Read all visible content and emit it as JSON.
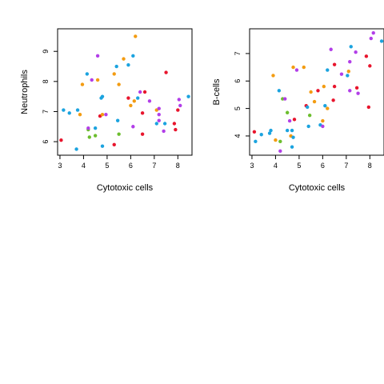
{
  "chart_data": [
    {
      "type": "scatter",
      "xlabel": "Cytotoxic cells",
      "ylabel": "Neutrophils",
      "xlim": [
        2.9,
        8.6
      ],
      "ylim": [
        5.55,
        9.75
      ],
      "xticks": [
        "3",
        "4",
        "5",
        "6",
        "7",
        "8"
      ],
      "yticks": [
        "6",
        "7",
        "8",
        "9"
      ],
      "grid": false,
      "points": [
        {
          "x": 3.05,
          "y": 6.05,
          "color": "#e8152d"
        },
        {
          "x": 3.15,
          "y": 7.05,
          "color": "#1ba3df"
        },
        {
          "x": 3.4,
          "y": 6.95,
          "color": "#1ba3df"
        },
        {
          "x": 3.75,
          "y": 7.05,
          "color": "#1ba3df"
        },
        {
          "x": 3.7,
          "y": 5.75,
          "color": "#1ba3df"
        },
        {
          "x": 3.85,
          "y": 6.9,
          "color": "#f39c12"
        },
        {
          "x": 3.95,
          "y": 7.9,
          "color": "#f39c12"
        },
        {
          "x": 4.15,
          "y": 8.25,
          "color": "#1ba3df"
        },
        {
          "x": 4.2,
          "y": 6.4,
          "color": "#6cbe2e"
        },
        {
          "x": 4.2,
          "y": 6.45,
          "color": "#b23ee8"
        },
        {
          "x": 4.25,
          "y": 6.15,
          "color": "#6cbe2e"
        },
        {
          "x": 4.35,
          "y": 8.05,
          "color": "#b23ee8"
        },
        {
          "x": 4.5,
          "y": 6.45,
          "color": "#1ba3df"
        },
        {
          "x": 4.5,
          "y": 6.2,
          "color": "#6cbe2e"
        },
        {
          "x": 4.6,
          "y": 8.85,
          "color": "#b23ee8"
        },
        {
          "x": 4.6,
          "y": 8.05,
          "color": "#f39c12"
        },
        {
          "x": 4.7,
          "y": 6.85,
          "color": "#e8152d"
        },
        {
          "x": 4.75,
          "y": 7.45,
          "color": "#1ba3df"
        },
        {
          "x": 4.8,
          "y": 7.5,
          "color": "#1ba3df"
        },
        {
          "x": 4.8,
          "y": 5.85,
          "color": "#1ba3df"
        },
        {
          "x": 4.8,
          "y": 6.9,
          "color": "#f39c12"
        },
        {
          "x": 4.95,
          "y": 6.9,
          "color": "#b23ee8"
        },
        {
          "x": 5.3,
          "y": 8.25,
          "color": "#f39c12"
        },
        {
          "x": 5.3,
          "y": 5.9,
          "color": "#e8152d"
        },
        {
          "x": 5.4,
          "y": 8.5,
          "color": "#1ba3df"
        },
        {
          "x": 5.45,
          "y": 6.7,
          "color": "#1ba3df"
        },
        {
          "x": 5.5,
          "y": 6.25,
          "color": "#6cbe2e"
        },
        {
          "x": 5.5,
          "y": 7.9,
          "color": "#f39c12"
        },
        {
          "x": 5.7,
          "y": 8.75,
          "color": "#f39c12"
        },
        {
          "x": 5.9,
          "y": 8.55,
          "color": "#1ba3df"
        },
        {
          "x": 5.9,
          "y": 7.45,
          "color": "#e8152d"
        },
        {
          "x": 6.0,
          "y": 7.2,
          "color": "#f39c12"
        },
        {
          "x": 6.1,
          "y": 8.85,
          "color": "#1ba3df"
        },
        {
          "x": 6.1,
          "y": 6.5,
          "color": "#b23ee8"
        },
        {
          "x": 6.15,
          "y": 7.35,
          "color": "#f39c12"
        },
        {
          "x": 6.2,
          "y": 9.5,
          "color": "#f39c12"
        },
        {
          "x": 6.3,
          "y": 7.45,
          "color": "#1ba3df"
        },
        {
          "x": 6.4,
          "y": 7.65,
          "color": "#b23ee8"
        },
        {
          "x": 6.5,
          "y": 6.95,
          "color": "#e8152d"
        },
        {
          "x": 6.5,
          "y": 6.25,
          "color": "#e8152d"
        },
        {
          "x": 6.6,
          "y": 7.65,
          "color": "#e8152d"
        },
        {
          "x": 6.8,
          "y": 7.35,
          "color": "#b23ee8"
        },
        {
          "x": 7.1,
          "y": 7.05,
          "color": "#f39c12"
        },
        {
          "x": 7.1,
          "y": 6.6,
          "color": "#1ba3df"
        },
        {
          "x": 7.2,
          "y": 7.1,
          "color": "#b23ee8"
        },
        {
          "x": 7.2,
          "y": 6.9,
          "color": "#b23ee8"
        },
        {
          "x": 7.2,
          "y": 6.7,
          "color": "#b23ee8"
        },
        {
          "x": 7.4,
          "y": 6.35,
          "color": "#b23ee8"
        },
        {
          "x": 7.45,
          "y": 6.6,
          "color": "#1ba3df"
        },
        {
          "x": 7.5,
          "y": 8.3,
          "color": "#e8152d"
        },
        {
          "x": 7.85,
          "y": 6.6,
          "color": "#e8152d"
        },
        {
          "x": 7.9,
          "y": 6.4,
          "color": "#e8152d"
        },
        {
          "x": 8.0,
          "y": 7.05,
          "color": "#e8152d"
        },
        {
          "x": 8.05,
          "y": 7.4,
          "color": "#b23ee8"
        },
        {
          "x": 8.1,
          "y": 7.2,
          "color": "#b23ee8"
        },
        {
          "x": 8.45,
          "y": 7.5,
          "color": "#1ba3df"
        }
      ]
    },
    {
      "type": "scatter",
      "xlabel": "Cytotoxic cells",
      "ylabel": "B-cells",
      "xlim": [
        2.9,
        8.6
      ],
      "ylim": [
        3.3,
        7.9
      ],
      "xticks": [
        "3",
        "4",
        "5",
        "6",
        "7",
        "8"
      ],
      "yticks": [
        "4",
        "5",
        "6",
        "7"
      ],
      "grid": false,
      "points": [
        {
          "x": 3.1,
          "y": 4.15,
          "color": "#e8152d"
        },
        {
          "x": 3.15,
          "y": 3.8,
          "color": "#1ba3df"
        },
        {
          "x": 3.4,
          "y": 4.05,
          "color": "#1ba3df"
        },
        {
          "x": 3.75,
          "y": 4.1,
          "color": "#1ba3df"
        },
        {
          "x": 3.8,
          "y": 4.2,
          "color": "#1ba3df"
        },
        {
          "x": 3.9,
          "y": 6.2,
          "color": "#f39c12"
        },
        {
          "x": 4.0,
          "y": 3.85,
          "color": "#f39c12"
        },
        {
          "x": 4.15,
          "y": 5.65,
          "color": "#1ba3df"
        },
        {
          "x": 4.2,
          "y": 3.8,
          "color": "#6cbe2e"
        },
        {
          "x": 4.2,
          "y": 3.45,
          "color": "#b23ee8"
        },
        {
          "x": 4.3,
          "y": 5.35,
          "color": "#6cbe2e"
        },
        {
          "x": 4.4,
          "y": 5.35,
          "color": "#b23ee8"
        },
        {
          "x": 4.5,
          "y": 4.85,
          "color": "#6cbe2e"
        },
        {
          "x": 4.5,
          "y": 4.2,
          "color": "#1ba3df"
        },
        {
          "x": 4.6,
          "y": 4.55,
          "color": "#b23ee8"
        },
        {
          "x": 4.65,
          "y": 4.0,
          "color": "#f39c12"
        },
        {
          "x": 4.7,
          "y": 4.2,
          "color": "#1ba3df"
        },
        {
          "x": 4.7,
          "y": 3.6,
          "color": "#1ba3df"
        },
        {
          "x": 4.75,
          "y": 3.95,
          "color": "#1ba3df"
        },
        {
          "x": 4.75,
          "y": 6.5,
          "color": "#f39c12"
        },
        {
          "x": 4.8,
          "y": 4.6,
          "color": "#e8152d"
        },
        {
          "x": 4.9,
          "y": 6.4,
          "color": "#b23ee8"
        },
        {
          "x": 5.2,
          "y": 6.5,
          "color": "#f39c12"
        },
        {
          "x": 5.3,
          "y": 5.1,
          "color": "#e8152d"
        },
        {
          "x": 5.35,
          "y": 5.05,
          "color": "#1ba3df"
        },
        {
          "x": 5.4,
          "y": 4.35,
          "color": "#1ba3df"
        },
        {
          "x": 5.45,
          "y": 4.75,
          "color": "#6cbe2e"
        },
        {
          "x": 5.5,
          "y": 5.6,
          "color": "#f39c12"
        },
        {
          "x": 5.65,
          "y": 5.25,
          "color": "#f39c12"
        },
        {
          "x": 5.8,
          "y": 5.65,
          "color": "#e8152d"
        },
        {
          "x": 5.9,
          "y": 4.4,
          "color": "#1ba3df"
        },
        {
          "x": 6.0,
          "y": 4.55,
          "color": "#f39c12"
        },
        {
          "x": 6.0,
          "y": 4.35,
          "color": "#b23ee8"
        },
        {
          "x": 6.05,
          "y": 5.8,
          "color": "#f39c12"
        },
        {
          "x": 6.1,
          "y": 5.1,
          "color": "#1ba3df"
        },
        {
          "x": 6.2,
          "y": 5.0,
          "color": "#f39c12"
        },
        {
          "x": 6.2,
          "y": 6.4,
          "color": "#1ba3df"
        },
        {
          "x": 6.35,
          "y": 7.15,
          "color": "#b23ee8"
        },
        {
          "x": 6.45,
          "y": 5.3,
          "color": "#e8152d"
        },
        {
          "x": 6.5,
          "y": 6.6,
          "color": "#e8152d"
        },
        {
          "x": 6.5,
          "y": 5.8,
          "color": "#e8152d"
        },
        {
          "x": 6.8,
          "y": 6.25,
          "color": "#b23ee8"
        },
        {
          "x": 7.05,
          "y": 6.2,
          "color": "#1ba3df"
        },
        {
          "x": 7.1,
          "y": 6.35,
          "color": "#f39c12"
        },
        {
          "x": 7.15,
          "y": 6.7,
          "color": "#b23ee8"
        },
        {
          "x": 7.15,
          "y": 5.65,
          "color": "#b23ee8"
        },
        {
          "x": 7.2,
          "y": 7.25,
          "color": "#1ba3df"
        },
        {
          "x": 7.4,
          "y": 7.05,
          "color": "#b23ee8"
        },
        {
          "x": 7.45,
          "y": 5.75,
          "color": "#e8152d"
        },
        {
          "x": 7.5,
          "y": 5.55,
          "color": "#b23ee8"
        },
        {
          "x": 7.85,
          "y": 6.9,
          "color": "#e8152d"
        },
        {
          "x": 7.95,
          "y": 5.05,
          "color": "#e8152d"
        },
        {
          "x": 8.0,
          "y": 6.55,
          "color": "#e8152d"
        },
        {
          "x": 8.05,
          "y": 7.55,
          "color": "#b23ee8"
        },
        {
          "x": 8.15,
          "y": 7.75,
          "color": "#b23ee8"
        },
        {
          "x": 8.5,
          "y": 7.45,
          "color": "#1ba3df"
        }
      ]
    }
  ]
}
